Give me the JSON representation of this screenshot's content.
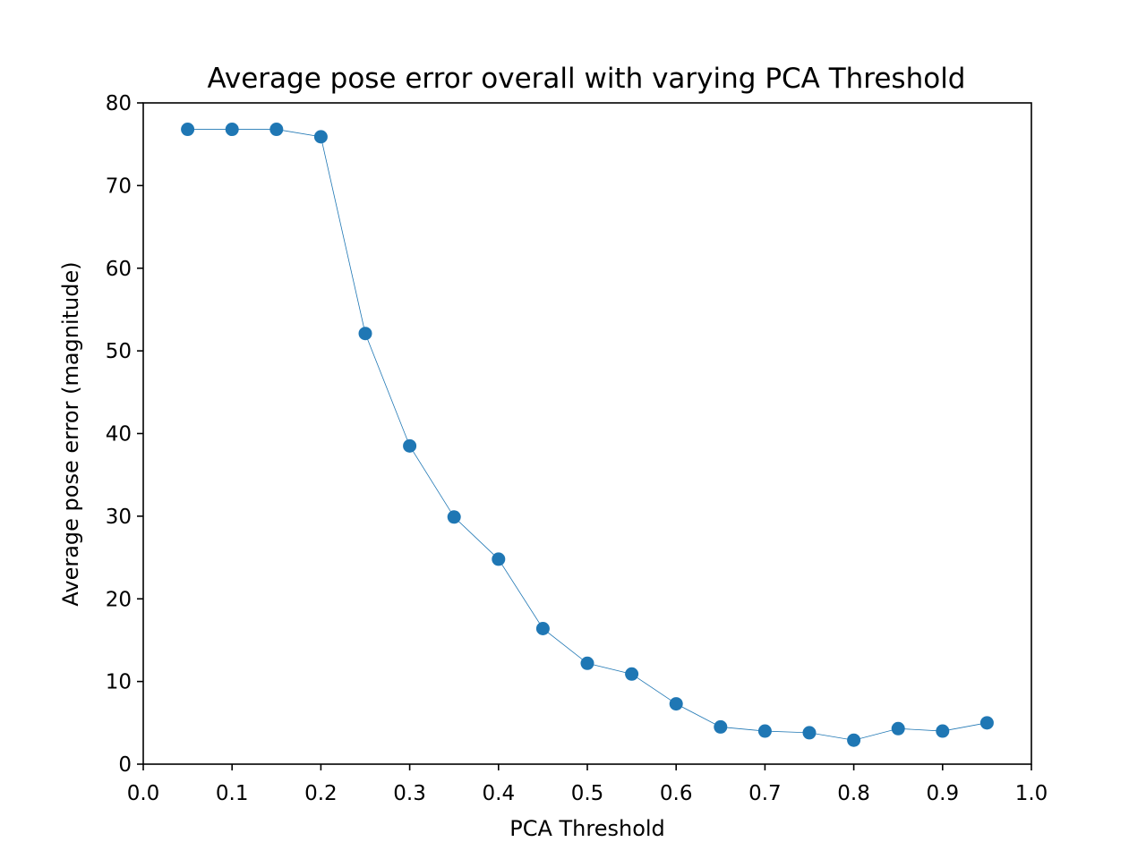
{
  "chart_data": {
    "type": "line",
    "title": "Average pose error overall with varying PCA Threshold",
    "xlabel": "PCA Threshold",
    "ylabel": "Average pose error (magnitude)",
    "xlim": [
      0.0,
      1.0
    ],
    "ylim": [
      0,
      80
    ],
    "xticks": [
      "0.0",
      "0.1",
      "0.2",
      "0.3",
      "0.4",
      "0.5",
      "0.6",
      "0.7",
      "0.8",
      "0.9",
      "1.0"
    ],
    "yticks": [
      "0",
      "10",
      "20",
      "30",
      "40",
      "50",
      "60",
      "70",
      "80"
    ],
    "grid": false,
    "series": [
      {
        "color": "#1f77b4",
        "marker": "circle",
        "x": [
          0.05,
          0.1,
          0.15,
          0.2,
          0.25,
          0.3,
          0.35,
          0.4,
          0.45,
          0.5,
          0.55,
          0.6,
          0.65,
          0.7,
          0.75,
          0.8,
          0.85,
          0.9,
          0.95
        ],
        "y": [
          76.8,
          76.8,
          76.8,
          75.9,
          52.1,
          38.5,
          29.9,
          24.8,
          16.4,
          12.2,
          10.9,
          7.3,
          4.5,
          4.0,
          3.8,
          2.9,
          4.3,
          4.0,
          5.0
        ]
      }
    ]
  }
}
